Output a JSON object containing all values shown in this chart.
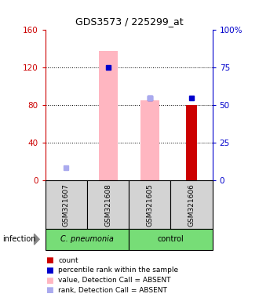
{
  "title": "GDS3573 / 225299_at",
  "samples": [
    "GSM321607",
    "GSM321608",
    "GSM321605",
    "GSM321606"
  ],
  "ylim_left": [
    0,
    160
  ],
  "ylim_right": [
    0,
    100
  ],
  "yticks_left": [
    0,
    40,
    80,
    120,
    160
  ],
  "ytick_labels_left": [
    "0",
    "40",
    "80",
    "120",
    "160"
  ],
  "yticks_right": [
    0,
    25,
    50,
    75,
    100
  ],
  "ytick_labels_right": [
    "0",
    "25",
    "50",
    "75",
    "100%"
  ],
  "bar_values": [
    null,
    null,
    null,
    80
  ],
  "bar_color": "#cc0000",
  "pink_bar_values": [
    null,
    138,
    85,
    null
  ],
  "pink_bar_color": "#FFB6C1",
  "blue_square_values": [
    null,
    120,
    88,
    88
  ],
  "blue_square_color": "#0000cc",
  "light_blue_square_values": [
    14,
    null,
    88,
    null
  ],
  "light_blue_square_color": "#aaaaee",
  "left_axis_color": "#cc0000",
  "right_axis_color": "#0000cc",
  "sample_box_color": "#d3d3d3",
  "cpneumonia_color": "#77dd77",
  "control_color": "#77dd77",
  "group_label_italic": [
    true,
    false
  ],
  "group_labels": [
    "C. pneumonia",
    "control"
  ],
  "legend_items": [
    {
      "color": "#cc0000",
      "label": "count"
    },
    {
      "color": "#0000cc",
      "label": "percentile rank within the sample"
    },
    {
      "color": "#FFB6C1",
      "label": "value, Detection Call = ABSENT"
    },
    {
      "color": "#aaaaee",
      "label": "rank, Detection Call = ABSENT"
    }
  ]
}
